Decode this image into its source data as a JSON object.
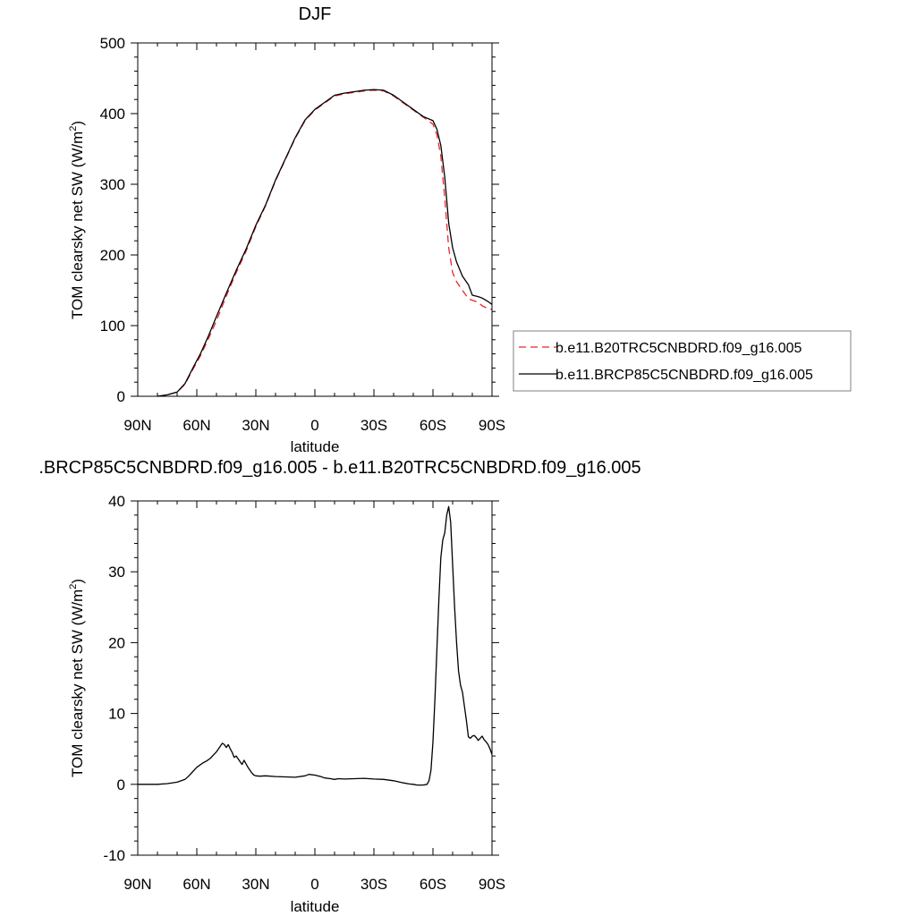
{
  "chart_data": [
    {
      "type": "line",
      "title": "DJF",
      "xlabel": "latitude",
      "ylabel": "TOM clearsky net SW (W/m",
      "ylabel_sup": "2",
      "ylabel_end": ")",
      "xlim": [
        90,
        -90
      ],
      "ylim": [
        0,
        500
      ],
      "xticks": [
        90,
        60,
        30,
        0,
        -30,
        -60,
        -90
      ],
      "xtick_labels": [
        "90N",
        "60N",
        "30N",
        "0",
        "30S",
        "60S",
        "90S"
      ],
      "yticks": [
        0,
        100,
        200,
        300,
        400,
        500
      ],
      "ytick_labels": [
        "0",
        "100",
        "200",
        "300",
        "400",
        "500"
      ],
      "grid": false,
      "legend_position": "right",
      "series": [
        {
          "name": "b.e11.B20TRC5CNBDRD.f09_g16.005",
          "color": "#e8262a",
          "style": "dashed",
          "x": [
            80,
            75,
            70,
            66,
            62,
            58,
            54,
            50,
            45,
            40,
            35,
            30,
            25,
            20,
            15,
            10,
            5,
            0,
            -5,
            -10,
            -15,
            -20,
            -25,
            -30,
            -35,
            -40,
            -45,
            -50,
            -55,
            -60,
            -62,
            -64,
            -66,
            -68,
            -70,
            -72,
            -75,
            -78,
            -80,
            -83,
            -85,
            -88,
            -90
          ],
          "y": [
            0,
            2,
            6,
            17,
            38,
            58,
            82,
            107,
            142,
            175,
            205,
            240,
            270,
            305,
            335,
            365,
            390,
            405,
            415,
            425,
            428,
            430,
            432,
            433,
            432,
            425,
            415,
            405,
            395,
            385,
            370,
            340,
            280,
            210,
            175,
            162,
            150,
            138,
            136,
            133,
            128,
            124,
            123
          ]
        },
        {
          "name": "b.e11.BRCP85C5CNBDRD.f09_g16.005",
          "color": "#000000",
          "style": "solid",
          "x": [
            80,
            75,
            70,
            66,
            62,
            58,
            54,
            50,
            45,
            40,
            35,
            30,
            25,
            20,
            15,
            10,
            5,
            0,
            -5,
            -10,
            -15,
            -20,
            -25,
            -30,
            -35,
            -40,
            -45,
            -50,
            -55,
            -60,
            -62,
            -64,
            -66,
            -68,
            -70,
            -72,
            -75,
            -78,
            -80,
            -83,
            -85,
            -88,
            -90
          ],
          "y": [
            0,
            2,
            6,
            18,
            40,
            61,
            86,
            113,
            146,
            178,
            208,
            242,
            271,
            306,
            336,
            366,
            391,
            406,
            416,
            426,
            429,
            431,
            433,
            434,
            433,
            426,
            416,
            406,
            396,
            390,
            378,
            355,
            310,
            245,
            210,
            190,
            170,
            158,
            143,
            141,
            139,
            134,
            130
          ]
        }
      ]
    },
    {
      "type": "line",
      "title": ".BRCP85C5CNBDRD.f09_g16.005 - b.e11.B20TRC5CNBDRD.f09_g16.005",
      "xlabel": "latitude",
      "ylabel": "TOM clearsky net SW (W/m",
      "ylabel_sup": "2",
      "ylabel_end": ")",
      "xlim": [
        90,
        -90
      ],
      "ylim": [
        -10,
        40
      ],
      "xticks": [
        90,
        60,
        30,
        0,
        -30,
        -60,
        -90
      ],
      "xtick_labels": [
        "90N",
        "60N",
        "30N",
        "0",
        "30S",
        "60S",
        "90S"
      ],
      "yticks": [
        -10,
        0,
        10,
        20,
        30,
        40
      ],
      "ytick_labels": [
        "-10",
        "0",
        "10",
        "20",
        "30",
        "40"
      ],
      "grid": false,
      "series": [
        {
          "color": "#000000",
          "style": "solid",
          "x": [
            90,
            85,
            80,
            75,
            70,
            66,
            64,
            62,
            60,
            57,
            55,
            53,
            52,
            50,
            49,
            48,
            47,
            46,
            45,
            44,
            43,
            42,
            41,
            40,
            39,
            38,
            37,
            36,
            35,
            34,
            33,
            32,
            31,
            30,
            28,
            25,
            20,
            15,
            10,
            5,
            3,
            0,
            -3,
            -5,
            -8,
            -10,
            -12,
            -15,
            -20,
            -25,
            -30,
            -35,
            -40,
            -45,
            -48,
            -50,
            -52,
            -55,
            -57,
            -58,
            -59,
            -60,
            -61,
            -62,
            -63,
            -64,
            -65,
            -66,
            -67,
            -68,
            -69,
            -70,
            -71,
            -72,
            -73,
            -74,
            -75,
            -76,
            -77,
            -78,
            -79,
            -80,
            -81,
            -82,
            -83,
            -84,
            -85,
            -86,
            -87,
            -88,
            -89,
            -90
          ],
          "y": [
            0,
            0,
            0,
            0.1,
            0.3,
            0.7,
            1.2,
            1.8,
            2.4,
            3.0,
            3.3,
            3.7,
            4.0,
            4.6,
            5.0,
            5.4,
            5.8,
            5.6,
            5.2,
            5.6,
            5.0,
            4.5,
            3.8,
            4.0,
            3.6,
            3.2,
            2.8,
            3.4,
            2.9,
            2.4,
            2.0,
            1.6,
            1.3,
            1.2,
            1.15,
            1.2,
            1.1,
            1.05,
            1.0,
            1.2,
            1.4,
            1.3,
            1.1,
            0.9,
            0.8,
            0.7,
            0.8,
            0.75,
            0.8,
            0.85,
            0.75,
            0.7,
            0.5,
            0.2,
            0.05,
            0.0,
            -0.1,
            -0.1,
            0.0,
            0.5,
            2.0,
            6.0,
            12.0,
            19.0,
            26.0,
            32.0,
            34.5,
            35.5,
            38.0,
            39.2,
            37.0,
            31.0,
            25.0,
            20.0,
            16.0,
            14.0,
            13.0,
            11.0,
            9.0,
            6.7,
            6.5,
            6.8,
            6.9,
            6.6,
            6.2,
            6.5,
            6.8,
            6.3,
            6.0,
            5.6,
            5.0,
            4.2
          ]
        }
      ]
    }
  ]
}
